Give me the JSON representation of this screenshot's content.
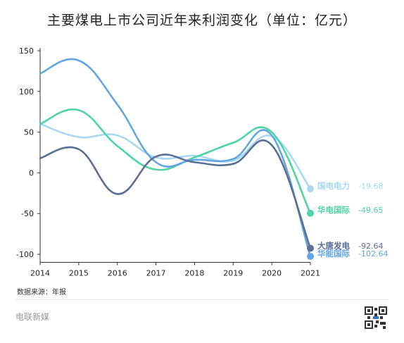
{
  "title": "主要煤电上市公司近年来利润变化（单位：亿元）",
  "source": "数据来源：年报",
  "brand": "电联新媒",
  "colors": {
    "国电电力": "#a8d8f2",
    "华电国际": "#4fd4a3",
    "大唐发电": "#5a6e96",
    "华能国际": "#62a6e6"
  },
  "chart_data": {
    "type": "line",
    "x": [
      2014,
      2015,
      2016,
      2017,
      2018,
      2019,
      2020,
      2021
    ],
    "ylim": [
      -110,
      150
    ],
    "yticks": [
      150,
      100,
      50,
      0,
      -50,
      -100
    ],
    "grid": false,
    "series": [
      {
        "name": "国电电力",
        "values": [
          60,
          44,
          46,
          19,
          21,
          15,
          45,
          -19.68
        ],
        "label": "-19.68"
      },
      {
        "name": "华电国际",
        "values": [
          60,
          77,
          33,
          4,
          19,
          37,
          50,
          -49.65
        ],
        "label": "-49.65"
      },
      {
        "name": "大唐发电",
        "values": [
          18,
          29,
          -26,
          20,
          13,
          11,
          34,
          -92.64
        ],
        "label": "-92.64"
      },
      {
        "name": "华能国际",
        "values": [
          122,
          138,
          84,
          13,
          16,
          17,
          46,
          -102.64
        ],
        "label": "-102.64"
      }
    ]
  }
}
